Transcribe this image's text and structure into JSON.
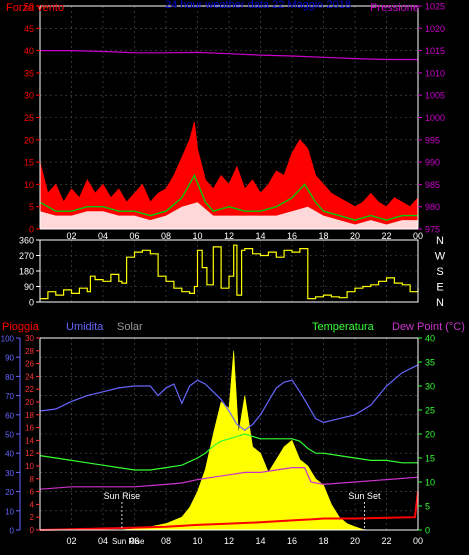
{
  "colors": {
    "background": "#000000",
    "frame": "#ffffff",
    "wind": "#ff0000",
    "wind_avg": "#00cc00",
    "wind_gust": "#ffffff",
    "pressure": "#cc00cc",
    "direction": "#ffff00",
    "rain": "#ff0000",
    "rain_axis": "#ff3333",
    "humidity": "#6666ff",
    "solar": "#ffff00",
    "temperature": "#33ff33",
    "dewpoint": "#cc33cc",
    "sun_label": "#ffffff",
    "title": "#0000cc",
    "grid": "#555555"
  },
  "chart_data": [
    {
      "type": "line",
      "title": "24 hour weather data  22 Maggio 2018",
      "left_label": "Forza vento",
      "right_label": "Pressione",
      "x_ticks": [
        "02",
        "04",
        "06",
        "08",
        "10",
        "12",
        "14",
        "16",
        "18",
        "20",
        "22",
        "00"
      ],
      "x_range": [
        0,
        24
      ],
      "y_left_ticks": [
        0,
        5,
        10,
        15,
        20,
        25,
        30,
        35,
        40,
        45,
        50
      ],
      "y_left_range": [
        0,
        50
      ],
      "y_right_ticks": [
        975,
        980,
        985,
        990,
        995,
        1000,
        1005,
        1010,
        1015,
        1020,
        1025
      ],
      "y_right_range": [
        975,
        1025
      ],
      "series": [
        {
          "name": "Forza vento",
          "x": [
            0,
            0.5,
            1,
            1.5,
            2,
            2.5,
            3,
            3.5,
            4,
            4.5,
            5,
            5.5,
            6,
            6.5,
            7,
            7.5,
            8,
            8.5,
            9,
            9.5,
            9.8,
            10,
            10.5,
            11,
            11.5,
            12,
            12.5,
            13,
            13.5,
            14,
            14.5,
            15,
            15.5,
            16,
            16.5,
            17,
            17.5,
            18,
            18.5,
            19,
            19.5,
            20,
            20.5,
            21,
            21.5,
            22,
            22.5,
            23,
            23.5,
            24
          ],
          "values": [
            15,
            8,
            10,
            6,
            9,
            7,
            11,
            8,
            10,
            7,
            9,
            6,
            8,
            10,
            6,
            8,
            9,
            12,
            16,
            20,
            24,
            18,
            11,
            9,
            12,
            10,
            14,
            9,
            11,
            8,
            10,
            13,
            12,
            17,
            20,
            18,
            12,
            10,
            8,
            7,
            6,
            5,
            6,
            8,
            6,
            5,
            7,
            6,
            5,
            7
          ]
        },
        {
          "name": "Media vento",
          "x": [
            0,
            1,
            2,
            3,
            4,
            5,
            6,
            7,
            8,
            9,
            9.8,
            10.5,
            11,
            12,
            13,
            14,
            15,
            16,
            16.8,
            17.5,
            18,
            19,
            20,
            21,
            22,
            23,
            24
          ],
          "values": [
            6,
            4,
            4,
            5,
            5,
            4,
            4,
            3,
            4,
            7,
            12,
            6,
            4,
            5,
            4,
            4,
            5,
            7,
            10,
            6,
            4,
            3,
            2,
            3,
            2,
            3,
            3
          ]
        },
        {
          "name": "Raffica",
          "x": [
            0,
            1,
            2,
            3,
            4,
            5,
            6,
            7,
            8,
            9,
            10,
            11,
            12,
            13,
            14,
            15,
            16,
            17,
            18,
            19,
            20,
            21,
            22,
            23,
            24
          ],
          "values": [
            4,
            3,
            3,
            4,
            4,
            3,
            3,
            2,
            3,
            5,
            6,
            3,
            3,
            3,
            3,
            3,
            4,
            5,
            3,
            2,
            1,
            2,
            1,
            2,
            2
          ]
        },
        {
          "name": "Pressione",
          "x": [
            0,
            2,
            4,
            6,
            8,
            10,
            12,
            14,
            16,
            18,
            20,
            22,
            24
          ],
          "values": [
            1015,
            1015,
            1014.8,
            1014.5,
            1014.5,
            1014.6,
            1014.3,
            1014,
            1013.8,
            1013.5,
            1013.2,
            1013,
            1013
          ]
        }
      ]
    },
    {
      "type": "line",
      "right_labels": [
        "N",
        "W",
        "S",
        "E",
        "N"
      ],
      "x_range": [
        0,
        24
      ],
      "y_ticks": [
        0,
        90,
        180,
        270,
        360
      ],
      "y_range": [
        0,
        360
      ],
      "series": [
        {
          "name": "Direzione vento",
          "x": [
            0,
            0.5,
            1,
            1.5,
            2,
            2.5,
            3,
            3.2,
            3.5,
            4,
            4.5,
            5,
            5.2,
            5.5,
            6,
            6.5,
            7,
            7.5,
            8,
            8.5,
            9,
            9.5,
            9.8,
            10,
            10.3,
            10.6,
            11,
            11.5,
            12,
            12.3,
            12.5,
            12.8,
            13,
            13.5,
            14,
            14.5,
            15,
            15.5,
            16,
            16.5,
            16.8,
            17,
            17.5,
            18,
            18.5,
            19,
            19.5,
            20,
            20.5,
            21,
            21.5,
            22,
            22.5,
            23,
            23.5,
            24
          ],
          "values": [
            20,
            60,
            40,
            70,
            50,
            80,
            60,
            150,
            130,
            120,
            160,
            120,
            110,
            260,
            290,
            300,
            280,
            150,
            120,
            80,
            60,
            50,
            90,
            300,
            200,
            100,
            320,
            80,
            150,
            330,
            40,
            300,
            310,
            280,
            270,
            290,
            260,
            300,
            290,
            310,
            310,
            20,
            30,
            40,
            30,
            25,
            60,
            80,
            90,
            100,
            120,
            140,
            110,
            100,
            60,
            80
          ]
        }
      ]
    },
    {
      "type": "area",
      "left_labels": [
        "Pioggia",
        "Umidita",
        "Solar"
      ],
      "right_labels": [
        "Temperatura",
        "Dew Point (°C)"
      ],
      "x_ticks": [
        "02",
        "04",
        "06",
        "08",
        "10",
        "12",
        "14",
        "16",
        "18",
        "20",
        "22",
        "00"
      ],
      "x_range": [
        0,
        24
      ],
      "y_humidity_ticks": [
        0,
        10,
        20,
        30,
        40,
        50,
        60,
        70,
        80,
        90,
        100
      ],
      "y_humidity_range": [
        0,
        100
      ],
      "y_rain_ticks": [
        0,
        2,
        4,
        6,
        8,
        10,
        12,
        14,
        16,
        18,
        20,
        22,
        24,
        26,
        28,
        30
      ],
      "y_rain_range": [
        0,
        30
      ],
      "y_temp_ticks": [
        0,
        5,
        10,
        15,
        20,
        25,
        30,
        35,
        40
      ],
      "y_temp_range": [
        0,
        40
      ],
      "annotations": [
        {
          "label": "Sun Rise",
          "x": 5.2
        },
        {
          "label": "Sun Set",
          "x": 20.6
        },
        {
          "label": "Sun Rise",
          "x": 5.6,
          "position": "axis"
        }
      ],
      "series": [
        {
          "name": "Umidita",
          "x": [
            0,
            1,
            2,
            3,
            4,
            5,
            6,
            7,
            7.5,
            8,
            8.5,
            9,
            9.5,
            10,
            10.5,
            11,
            11.5,
            12,
            12.5,
            13,
            13.5,
            14,
            15,
            15.5,
            16,
            16.5,
            17,
            17.5,
            18,
            19,
            20,
            21,
            22,
            23,
            24
          ],
          "values": [
            62,
            63,
            67,
            70,
            72,
            74,
            75,
            75,
            70,
            74,
            76,
            66,
            75,
            78,
            76,
            72,
            68,
            62,
            55,
            52,
            55,
            60,
            74,
            77,
            78,
            72,
            65,
            58,
            56,
            58,
            60,
            65,
            75,
            82,
            86
          ]
        },
        {
          "name": "Solar",
          "x": [
            0,
            5,
            5.5,
            6,
            7,
            8,
            9,
            9.5,
            10,
            10.5,
            11,
            11.5,
            12,
            12.3,
            12.6,
            13,
            13.5,
            14,
            14.5,
            15,
            15.5,
            16,
            16.5,
            17,
            17.5,
            18,
            18.5,
            19,
            19.5,
            20,
            20.5,
            21,
            24
          ],
          "values": [
            0,
            0,
            1,
            2,
            5,
            10,
            20,
            35,
            60,
            95,
            150,
            200,
            190,
            280,
            150,
            210,
            130,
            120,
            90,
            110,
            130,
            140,
            110,
            100,
            80,
            70,
            40,
            20,
            10,
            5,
            1,
            0,
            0
          ]
        },
        {
          "name": "Pioggia",
          "x": [
            0,
            5,
            8,
            10,
            12,
            14,
            16,
            17.5,
            18,
            20,
            23.8,
            24
          ],
          "values": [
            0,
            0.3,
            0.5,
            0.8,
            1.0,
            1.2,
            1.5,
            1.7,
            1.8,
            1.8,
            2.0,
            6.0
          ]
        },
        {
          "name": "Temperatura",
          "x": [
            0,
            1,
            2,
            3,
            4,
            5,
            6,
            7,
            8,
            9,
            10,
            10.5,
            11,
            11.5,
            12,
            12.5,
            13,
            13.5,
            14,
            15,
            16,
            16.5,
            17,
            17.5,
            18,
            19,
            20,
            21,
            22,
            23,
            24
          ],
          "values": [
            15.5,
            15,
            14.5,
            14,
            13.5,
            13,
            12.5,
            12.5,
            13,
            13.5,
            15,
            16,
            17.5,
            18.5,
            19,
            19.5,
            20,
            19.5,
            19,
            19,
            19,
            18.5,
            17,
            16,
            16,
            15.5,
            15,
            14.5,
            14.5,
            14,
            14
          ]
        },
        {
          "name": "Dew Point",
          "x": [
            0,
            2,
            4,
            6,
            8,
            9,
            10,
            11,
            12,
            13,
            14,
            15,
            16,
            16.8,
            17.2,
            18,
            20,
            22,
            24
          ],
          "values": [
            8.5,
            9,
            9,
            9,
            9.5,
            9.8,
            10.5,
            11,
            11.5,
            12,
            12,
            12.5,
            13,
            13,
            10,
            9.5,
            10,
            10.5,
            11
          ]
        }
      ]
    }
  ]
}
